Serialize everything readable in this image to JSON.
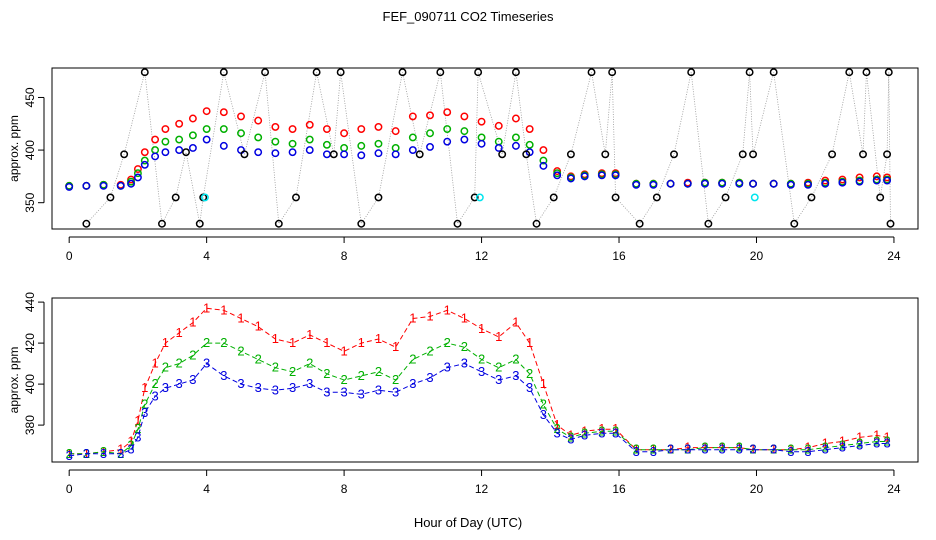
{
  "title": "FEF_090711  CO2 Timeseries",
  "xlabel": "Hour of Day (UTC)",
  "chart_data": [
    {
      "type": "scatter",
      "ylabel": "approx. ppm",
      "xlim": [
        -0.5,
        24.7
      ],
      "ylim": [
        325,
        478
      ],
      "xticks": [
        0,
        4,
        8,
        12,
        16,
        20,
        24
      ],
      "yticks": [
        350,
        400,
        450
      ],
      "grid": false,
      "series": [
        {
          "key": "s1",
          "color": "#ff0000",
          "x": [
            0,
            0.5,
            1,
            1.5,
            1.8,
            2,
            2.2,
            2.5,
            2.8,
            3.2,
            3.6,
            4,
            4.5,
            5,
            5.5,
            6,
            6.5,
            7,
            7.5,
            8,
            8.5,
            9,
            9.5,
            10,
            10.5,
            11,
            11.5,
            12,
            12.5,
            13,
            13.4,
            13.8,
            14.2,
            14.6,
            15,
            15.5,
            15.9,
            16.5,
            17,
            17.5,
            18,
            18.5,
            19,
            19.5,
            19.9,
            20.5,
            21,
            21.5,
            22,
            22.5,
            23,
            23.5,
            23.8
          ],
          "y": [
            366,
            366,
            367,
            367,
            372,
            382,
            398,
            410,
            420,
            425,
            430,
            437,
            436,
            432,
            428,
            422,
            420,
            424,
            420,
            416,
            420,
            422,
            418,
            432,
            433,
            436,
            432,
            427,
            423,
            430,
            420,
            400,
            380,
            375,
            377,
            378,
            378,
            368,
            368,
            368,
            369,
            369,
            369,
            369,
            368,
            368,
            368,
            369,
            371,
            372,
            374,
            375,
            374
          ]
        },
        {
          "key": "s2",
          "color": "#00b000",
          "x": [
            0,
            0.5,
            1,
            1.5,
            1.8,
            2,
            2.2,
            2.5,
            2.8,
            3.2,
            3.6,
            4,
            4.5,
            5,
            5.5,
            6,
            6.5,
            7,
            7.5,
            8,
            8.5,
            9,
            9.5,
            10,
            10.5,
            11,
            11.5,
            12,
            12.5,
            13,
            13.4,
            13.8,
            14.2,
            14.6,
            15,
            15.5,
            15.9,
            16.5,
            17,
            17.5,
            18,
            18.5,
            19,
            19.5,
            19.9,
            20.5,
            21,
            21.5,
            22,
            22.5,
            23,
            23.5,
            23.8
          ],
          "y": [
            366,
            366,
            367,
            366,
            370,
            378,
            390,
            400,
            408,
            410,
            414,
            420,
            420,
            416,
            412,
            408,
            406,
            410,
            405,
            402,
            404,
            406,
            402,
            412,
            416,
            420,
            418,
            412,
            408,
            412,
            405,
            390,
            378,
            374,
            376,
            377,
            377,
            368,
            368,
            368,
            368,
            369,
            369,
            369,
            368,
            368,
            368,
            368,
            369,
            370,
            371,
            372,
            372
          ]
        },
        {
          "key": "s3",
          "color": "#0000e0",
          "x": [
            0,
            0.5,
            1,
            1.5,
            1.8,
            2,
            2.2,
            2.5,
            2.8,
            3.2,
            3.6,
            4,
            4.5,
            5,
            5.5,
            6,
            6.5,
            7,
            7.5,
            8,
            8.5,
            9,
            9.5,
            10,
            10.5,
            11,
            11.5,
            12,
            12.5,
            13,
            13.4,
            13.8,
            14.2,
            14.6,
            15,
            15.5,
            15.9,
            16.5,
            17,
            17.5,
            18,
            18.5,
            19,
            19.5,
            19.9,
            20.5,
            21,
            21.5,
            22,
            22.5,
            23,
            23.5,
            23.8
          ],
          "y": [
            365,
            366,
            366,
            366,
            368,
            374,
            386,
            394,
            398,
            400,
            402,
            410,
            404,
            400,
            398,
            397,
            398,
            400,
            396,
            396,
            395,
            397,
            396,
            400,
            403,
            408,
            410,
            406,
            402,
            404,
            398,
            385,
            376,
            373,
            375,
            376,
            376,
            367,
            367,
            368,
            368,
            368,
            368,
            368,
            368,
            368,
            367,
            367,
            368,
            369,
            370,
            371,
            371
          ]
        },
        {
          "key": "s4",
          "color": "#000000",
          "x": [
            0.5,
            1.2,
            1.6,
            2.2,
            2.7,
            3.1,
            3.4,
            3.8,
            3.9,
            4.5,
            5.1,
            5.7,
            6.1,
            6.6,
            7.2,
            7.7,
            7.9,
            8.5,
            9,
            9.7,
            10.2,
            10.8,
            11.3,
            11.8,
            11.9,
            12.6,
            13,
            13.3,
            13.6,
            14.1,
            14.6,
            15.2,
            15.6,
            15.8,
            15.9,
            16.6,
            17.1,
            17.6,
            18.1,
            18.6,
            19.1,
            19.6,
            19.8,
            19.9,
            20.5,
            21.1,
            21.6,
            22.2,
            22.7,
            23.1,
            23.2,
            23.6,
            23.8,
            23.85,
            23.9
          ],
          "y": [
            330,
            355,
            396,
            474,
            330,
            355,
            398,
            330,
            355,
            474,
            396,
            474,
            330,
            355,
            474,
            396,
            474,
            330,
            355,
            474,
            396,
            474,
            330,
            355,
            474,
            396,
            474,
            396,
            330,
            355,
            396,
            474,
            396,
            474,
            355,
            330,
            355,
            396,
            474,
            330,
            355,
            396,
            474,
            396,
            474,
            330,
            355,
            396,
            474,
            396,
            474,
            355,
            396,
            474,
            330
          ]
        },
        {
          "key": "s5",
          "color": "#00e5ee",
          "x": [
            3.95,
            11.95,
            19.95
          ],
          "y": [
            355,
            355,
            355
          ]
        }
      ]
    },
    {
      "type": "line",
      "ylabel": "approx. ppm",
      "xlim": [
        -0.5,
        24.7
      ],
      "ylim": [
        362,
        442
      ],
      "xticks": [
        0,
        4,
        8,
        12,
        16,
        20,
        24
      ],
      "yticks": [
        380,
        400,
        420,
        440
      ],
      "grid": false,
      "series": [
        {
          "key": "s1",
          "color": "#ff0000",
          "marker": "1",
          "x": [
            0,
            0.5,
            1,
            1.5,
            1.8,
            2,
            2.2,
            2.5,
            2.8,
            3.2,
            3.6,
            4,
            4.5,
            5,
            5.5,
            6,
            6.5,
            7,
            7.5,
            8,
            8.5,
            9,
            9.5,
            10,
            10.5,
            11,
            11.5,
            12,
            12.5,
            13,
            13.4,
            13.8,
            14.2,
            14.6,
            15,
            15.5,
            15.9,
            16.5,
            17,
            17.5,
            18,
            18.5,
            19,
            19.5,
            19.9,
            20.5,
            21,
            21.5,
            22,
            22.5,
            23,
            23.5,
            23.8
          ],
          "y": [
            366,
            366,
            367,
            368,
            372,
            382,
            398,
            410,
            420,
            425,
            430,
            437,
            436,
            432,
            428,
            422,
            420,
            424,
            420,
            416,
            420,
            422,
            418,
            432,
            433,
            436,
            432,
            427,
            423,
            430,
            420,
            400,
            380,
            375,
            377,
            378,
            378,
            368,
            368,
            368,
            369,
            369,
            369,
            369,
            368,
            368,
            368,
            369,
            371,
            372,
            374,
            375,
            374
          ]
        },
        {
          "key": "s2",
          "color": "#00b000",
          "marker": "2",
          "x": [
            0,
            0.5,
            1,
            1.5,
            1.8,
            2,
            2.2,
            2.5,
            2.8,
            3.2,
            3.6,
            4,
            4.5,
            5,
            5.5,
            6,
            6.5,
            7,
            7.5,
            8,
            8.5,
            9,
            9.5,
            10,
            10.5,
            11,
            11.5,
            12,
            12.5,
            13,
            13.4,
            13.8,
            14.2,
            14.6,
            15,
            15.5,
            15.9,
            16.5,
            17,
            17.5,
            18,
            18.5,
            19,
            19.5,
            19.9,
            20.5,
            21,
            21.5,
            22,
            22.5,
            23,
            23.5,
            23.8
          ],
          "y": [
            366,
            366,
            367,
            366,
            370,
            378,
            390,
            400,
            408,
            410,
            414,
            420,
            420,
            416,
            412,
            408,
            406,
            410,
            405,
            402,
            404,
            406,
            402,
            412,
            416,
            420,
            418,
            412,
            408,
            412,
            405,
            390,
            378,
            374,
            376,
            377,
            377,
            368,
            368,
            368,
            368,
            369,
            369,
            369,
            368,
            368,
            368,
            368,
            369,
            370,
            371,
            372,
            372
          ]
        },
        {
          "key": "s3",
          "color": "#0000e0",
          "marker": "3",
          "x": [
            0,
            0.5,
            1,
            1.5,
            1.8,
            2,
            2.2,
            2.5,
            2.8,
            3.2,
            3.6,
            4,
            4.5,
            5,
            5.5,
            6,
            6.5,
            7,
            7.5,
            8,
            8.5,
            9,
            9.5,
            10,
            10.5,
            11,
            11.5,
            12,
            12.5,
            13,
            13.4,
            13.8,
            14.2,
            14.6,
            15,
            15.5,
            15.9,
            16.5,
            17,
            17.5,
            18,
            18.5,
            19,
            19.5,
            19.9,
            20.5,
            21,
            21.5,
            22,
            22.5,
            23,
            23.5,
            23.8
          ],
          "y": [
            365,
            366,
            366,
            366,
            368,
            374,
            386,
            394,
            398,
            400,
            402,
            410,
            404,
            400,
            398,
            397,
            398,
            400,
            396,
            396,
            395,
            397,
            396,
            400,
            403,
            408,
            410,
            406,
            402,
            404,
            398,
            385,
            376,
            373,
            375,
            376,
            376,
            367,
            367,
            368,
            368,
            368,
            368,
            368,
            368,
            368,
            367,
            367,
            368,
            369,
            370,
            371,
            371
          ]
        }
      ]
    }
  ]
}
